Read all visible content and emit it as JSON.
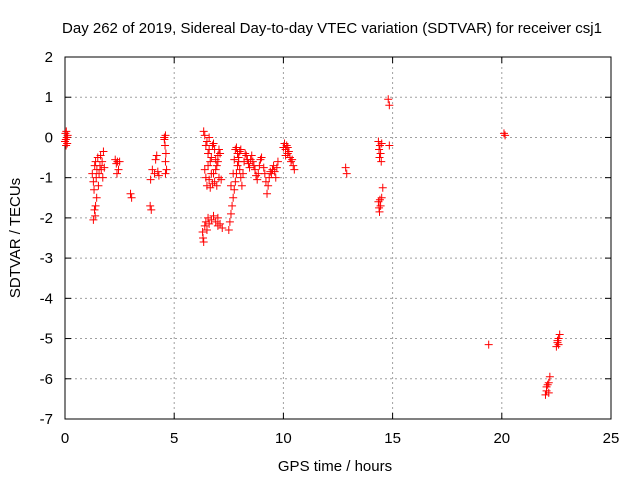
{
  "chart_data": {
    "type": "scatter",
    "title": "Day 262 of 2019, Sidereal Day-to-day VTEC variation (SDTVAR) for receiver csj1",
    "xlabel": "GPS time / hours",
    "ylabel": "SDTVAR / TECUs",
    "xlim": [
      0,
      25
    ],
    "ylim": [
      -7,
      2
    ],
    "xticks": [
      0,
      5,
      10,
      15,
      20,
      25
    ],
    "yticks": [
      -7,
      -6,
      -5,
      -4,
      -3,
      -2,
      -1,
      0,
      1,
      2
    ],
    "grid": true,
    "marker": "+",
    "series_color": "#ff0000",
    "series": [
      {
        "name": "csj1",
        "points": [
          [
            0.0,
            -0.1
          ],
          [
            0.02,
            0.1
          ],
          [
            0.04,
            -0.05
          ],
          [
            0.06,
            0.15
          ],
          [
            0.08,
            0.0
          ],
          [
            0.1,
            -0.15
          ],
          [
            0.12,
            0.05
          ],
          [
            0.05,
            -0.2
          ],
          [
            1.25,
            -0.9
          ],
          [
            1.3,
            -1.1
          ],
          [
            1.33,
            -1.3
          ],
          [
            1.36,
            -0.7
          ],
          [
            1.4,
            -0.6
          ],
          [
            1.43,
            -1.0
          ],
          [
            1.46,
            -0.8
          ],
          [
            1.5,
            -0.5
          ],
          [
            1.53,
            -1.2
          ],
          [
            1.56,
            -0.9
          ],
          [
            1.6,
            -0.7
          ],
          [
            1.63,
            -0.45
          ],
          [
            1.66,
            -0.8
          ],
          [
            1.7,
            -0.6
          ],
          [
            1.73,
            -1.0
          ],
          [
            1.76,
            -0.35
          ],
          [
            1.8,
            -0.75
          ],
          [
            1.35,
            -1.8
          ],
          [
            1.38,
            -1.95
          ],
          [
            1.4,
            -1.7
          ],
          [
            1.45,
            -1.5
          ],
          [
            1.3,
            -2.05
          ],
          [
            2.3,
            -0.55
          ],
          [
            2.35,
            -0.65
          ],
          [
            2.4,
            -0.6
          ],
          [
            2.45,
            -0.8
          ],
          [
            2.5,
            -0.6
          ],
          [
            2.38,
            -0.9
          ],
          [
            3.0,
            -1.4
          ],
          [
            3.05,
            -1.5
          ],
          [
            3.9,
            -1.7
          ],
          [
            3.95,
            -1.8
          ],
          [
            3.92,
            -1.05
          ],
          [
            4.0,
            -0.8
          ],
          [
            4.1,
            -0.9
          ],
          [
            4.15,
            -0.55
          ],
          [
            4.2,
            -0.45
          ],
          [
            4.25,
            -0.85
          ],
          [
            4.3,
            -0.95
          ],
          [
            4.55,
            -0.05
          ],
          [
            4.6,
            0.05
          ],
          [
            4.58,
            -0.2
          ],
          [
            4.62,
            -0.4
          ],
          [
            4.6,
            -0.6
          ],
          [
            4.65,
            -0.8
          ],
          [
            4.6,
            -0.9
          ],
          [
            4.55,
            0.0
          ],
          [
            6.3,
            -2.35
          ],
          [
            6.32,
            -2.5
          ],
          [
            6.35,
            -2.6
          ],
          [
            6.4,
            -2.2
          ],
          [
            6.45,
            -2.1
          ],
          [
            6.5,
            -2.3
          ],
          [
            6.55,
            -2.0
          ],
          [
            6.6,
            -2.15
          ],
          [
            6.7,
            -2.05
          ],
          [
            6.8,
            -1.95
          ],
          [
            6.9,
            -2.1
          ],
          [
            7.0,
            -2.0
          ],
          [
            7.1,
            -2.15
          ],
          [
            7.2,
            -2.25
          ],
          [
            7.0,
            -2.2
          ],
          [
            6.35,
            0.15
          ],
          [
            6.4,
            0.05
          ],
          [
            6.45,
            -0.2
          ],
          [
            6.5,
            -0.1
          ],
          [
            6.55,
            -0.4
          ],
          [
            6.6,
            -0.3
          ],
          [
            6.65,
            -0.6
          ],
          [
            6.7,
            -0.5
          ],
          [
            6.75,
            -0.2
          ],
          [
            6.8,
            -0.9
          ],
          [
            6.85,
            -1.1
          ],
          [
            6.9,
            -0.8
          ],
          [
            6.95,
            -1.2
          ],
          [
            7.0,
            -0.6
          ],
          [
            7.05,
            -1.0
          ],
          [
            7.1,
            -0.4
          ],
          [
            6.4,
            -0.8
          ],
          [
            6.45,
            -1.0
          ],
          [
            6.5,
            -1.2
          ],
          [
            6.55,
            -0.7
          ],
          [
            6.6,
            -1.05
          ],
          [
            6.65,
            -1.25
          ],
          [
            6.7,
            -0.9
          ],
          [
            6.75,
            -1.15
          ],
          [
            6.8,
            -0.15
          ],
          [
            6.85,
            -0.3
          ],
          [
            6.9,
            -0.55
          ],
          [
            6.95,
            -0.7
          ],
          [
            7.0,
            -0.45
          ],
          [
            6.6,
            0.0
          ],
          [
            7.05,
            -0.3
          ],
          [
            7.15,
            -1.05
          ],
          [
            7.5,
            -2.3
          ],
          [
            7.55,
            -2.1
          ],
          [
            7.6,
            -1.9
          ],
          [
            7.65,
            -1.7
          ],
          [
            7.7,
            -1.5
          ],
          [
            7.75,
            -1.3
          ],
          [
            7.8,
            -1.1
          ],
          [
            7.85,
            -0.9
          ],
          [
            7.9,
            -0.7
          ],
          [
            7.95,
            -0.5
          ],
          [
            8.0,
            -0.35
          ],
          [
            8.05,
            -0.3
          ],
          [
            7.6,
            -1.2
          ],
          [
            7.7,
            -0.9
          ],
          [
            7.75,
            -0.55
          ],
          [
            7.8,
            -0.3
          ],
          [
            7.85,
            -0.25
          ],
          [
            7.9,
            -0.4
          ],
          [
            7.95,
            -0.6
          ],
          [
            8.0,
            -0.8
          ],
          [
            8.05,
            -1.0
          ],
          [
            8.1,
            -1.2
          ],
          [
            8.15,
            -0.9
          ],
          [
            8.2,
            -0.6
          ],
          [
            8.25,
            -0.4
          ],
          [
            8.3,
            -0.45
          ],
          [
            8.35,
            -0.55
          ],
          [
            8.4,
            -0.65
          ],
          [
            8.45,
            -0.75
          ],
          [
            8.5,
            -0.55
          ],
          [
            8.55,
            -0.45
          ],
          [
            8.6,
            -0.6
          ],
          [
            8.65,
            -0.7
          ],
          [
            8.7,
            -0.8
          ],
          [
            8.75,
            -0.95
          ],
          [
            8.8,
            -1.05
          ],
          [
            8.85,
            -0.9
          ],
          [
            8.9,
            -0.7
          ],
          [
            8.95,
            -0.55
          ],
          [
            9.0,
            -0.5
          ],
          [
            9.1,
            -0.75
          ],
          [
            9.15,
            -0.9
          ],
          [
            9.2,
            -1.1
          ],
          [
            9.25,
            -1.4
          ],
          [
            9.3,
            -1.2
          ],
          [
            9.35,
            -1.0
          ],
          [
            9.4,
            -0.85
          ],
          [
            9.45,
            -0.9
          ],
          [
            9.5,
            -0.8
          ],
          [
            9.55,
            -0.7
          ],
          [
            9.6,
            -0.85
          ],
          [
            9.65,
            -1.0
          ],
          [
            9.7,
            -0.75
          ],
          [
            9.75,
            -0.6
          ],
          [
            10.0,
            -0.25
          ],
          [
            10.05,
            -0.15
          ],
          [
            10.1,
            -0.3
          ],
          [
            10.15,
            -0.2
          ],
          [
            10.2,
            -0.4
          ],
          [
            10.25,
            -0.35
          ],
          [
            10.3,
            -0.5
          ],
          [
            10.35,
            -0.6
          ],
          [
            10.4,
            -0.55
          ],
          [
            10.45,
            -0.7
          ],
          [
            10.5,
            -0.8
          ],
          [
            10.1,
            -0.45
          ],
          [
            10.2,
            -0.25
          ],
          [
            12.85,
            -0.75
          ],
          [
            12.9,
            -0.9
          ],
          [
            14.35,
            -0.1
          ],
          [
            14.38,
            -0.3
          ],
          [
            14.4,
            -0.5
          ],
          [
            14.42,
            -0.2
          ],
          [
            14.45,
            -0.4
          ],
          [
            14.48,
            -0.6
          ],
          [
            14.5,
            -0.15
          ],
          [
            14.35,
            -1.6
          ],
          [
            14.38,
            -1.75
          ],
          [
            14.4,
            -1.85
          ],
          [
            14.42,
            -1.55
          ],
          [
            14.45,
            -1.7
          ],
          [
            14.5,
            -1.5
          ],
          [
            14.55,
            -1.25
          ],
          [
            14.8,
            0.95
          ],
          [
            14.85,
            0.8
          ],
          [
            14.85,
            -0.2
          ],
          [
            19.4,
            -5.15
          ],
          [
            20.1,
            0.1
          ],
          [
            20.15,
            0.05
          ],
          [
            22.0,
            -6.4
          ],
          [
            22.05,
            -6.3
          ],
          [
            22.1,
            -6.15
          ],
          [
            22.15,
            -6.1
          ],
          [
            22.2,
            -5.95
          ],
          [
            22.05,
            -6.2
          ],
          [
            22.15,
            -6.35
          ],
          [
            22.5,
            -5.2
          ],
          [
            22.55,
            -5.1
          ],
          [
            22.6,
            -5.0
          ],
          [
            22.65,
            -4.9
          ],
          [
            22.6,
            -5.15
          ],
          [
            22.55,
            -5.05
          ]
        ]
      }
    ]
  }
}
